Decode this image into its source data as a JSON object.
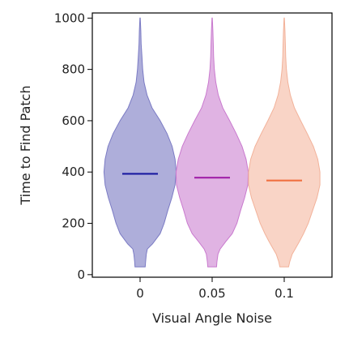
{
  "chart_data": {
    "type": "violin",
    "xlabel": "Visual Angle Noise",
    "ylabel": "Time to Find Patch",
    "categories": [
      "0",
      "0.05",
      "0.1"
    ],
    "ylim": [
      -10,
      1020
    ],
    "yticks": [
      0,
      200,
      400,
      600,
      800,
      1000
    ],
    "grid": false,
    "series": [
      {
        "category": "0",
        "median": 393,
        "min": 30,
        "max": 1000,
        "fill_color": "#8f8fcc",
        "edge_color": "#7b7bc4",
        "median_color": "#1a1aa0",
        "density": [
          [
            30,
            0.14
          ],
          [
            50,
            0.15
          ],
          [
            80,
            0.17
          ],
          [
            100,
            0.2
          ],
          [
            120,
            0.34
          ],
          [
            160,
            0.55
          ],
          [
            200,
            0.66
          ],
          [
            250,
            0.76
          ],
          [
            300,
            0.87
          ],
          [
            350,
            0.96
          ],
          [
            400,
            0.99
          ],
          [
            450,
            0.96
          ],
          [
            500,
            0.88
          ],
          [
            550,
            0.74
          ],
          [
            600,
            0.55
          ],
          [
            650,
            0.33
          ],
          [
            700,
            0.19
          ],
          [
            750,
            0.11
          ],
          [
            800,
            0.07
          ],
          [
            850,
            0.05
          ],
          [
            900,
            0.03
          ],
          [
            950,
            0.02
          ],
          [
            1000,
            0.005
          ]
        ]
      },
      {
        "category": "0.05",
        "median": 378,
        "min": 30,
        "max": 1000,
        "fill_color": "#d496d8",
        "edge_color": "#c97ace",
        "median_color": "#a020a8",
        "density": [
          [
            30,
            0.12
          ],
          [
            50,
            0.13
          ],
          [
            80,
            0.16
          ],
          [
            100,
            0.22
          ],
          [
            130,
            0.38
          ],
          [
            160,
            0.55
          ],
          [
            200,
            0.68
          ],
          [
            250,
            0.78
          ],
          [
            300,
            0.89
          ],
          [
            350,
            0.98
          ],
          [
            400,
            0.99
          ],
          [
            450,
            0.93
          ],
          [
            500,
            0.82
          ],
          [
            550,
            0.66
          ],
          [
            600,
            0.48
          ],
          [
            650,
            0.29
          ],
          [
            700,
            0.17
          ],
          [
            750,
            0.1
          ],
          [
            800,
            0.06
          ],
          [
            850,
            0.04
          ],
          [
            900,
            0.03
          ],
          [
            950,
            0.02
          ],
          [
            1000,
            0.005
          ]
        ]
      },
      {
        "category": "0.1",
        "median": 367,
        "min": 30,
        "max": 1000,
        "fill_color": "#f7c4b0",
        "edge_color": "#f2b29a",
        "median_color": "#f07040",
        "density": [
          [
            30,
            0.12
          ],
          [
            50,
            0.15
          ],
          [
            80,
            0.22
          ],
          [
            100,
            0.3
          ],
          [
            130,
            0.42
          ],
          [
            160,
            0.53
          ],
          [
            200,
            0.66
          ],
          [
            250,
            0.78
          ],
          [
            300,
            0.9
          ],
          [
            350,
            0.98
          ],
          [
            400,
            0.98
          ],
          [
            450,
            0.92
          ],
          [
            500,
            0.8
          ],
          [
            550,
            0.63
          ],
          [
            600,
            0.45
          ],
          [
            650,
            0.28
          ],
          [
            700,
            0.17
          ],
          [
            750,
            0.1
          ],
          [
            800,
            0.06
          ],
          [
            850,
            0.04
          ],
          [
            900,
            0.03
          ],
          [
            950,
            0.02
          ],
          [
            1000,
            0.005
          ]
        ]
      }
    ]
  }
}
